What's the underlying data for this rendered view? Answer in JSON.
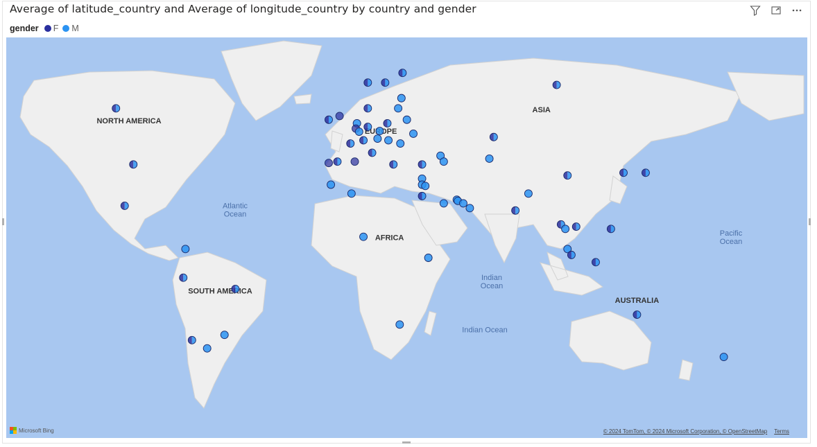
{
  "visual": {
    "title": "Average of latitude_country and Average of longitude_country by country and gender"
  },
  "legend": {
    "title": "gender",
    "items": [
      {
        "label": "F",
        "color": "#2a2f9e"
      },
      {
        "label": "M",
        "color": "#2b93f2"
      }
    ]
  },
  "icons": [
    "filter-icon",
    "focus-mode-icon",
    "more-options-icon"
  ],
  "map": {
    "continent_labels": [
      "NORTH AMERICA",
      "SOUTH AMERICA",
      "EUROPE",
      "AFRICA",
      "ASIA",
      "AUSTRALIA"
    ],
    "ocean_labels": [
      "Atlantic Ocean",
      "Indian Ocean",
      "Indian Ocean",
      "Pacific Ocean"
    ],
    "bing_label": "Microsoft Bing",
    "attribution": "© 2024 TomTom, © 2024 Microsoft Corporation, © OpenStreetMap",
    "terms_label": "Terms"
  },
  "chart_data": {
    "type": "scatter",
    "title": "Average of latitude_country and Average of longitude_country by country and gender",
    "xlabel": "Average of longitude_country",
    "ylabel": "Average of latitude_country",
    "legend_position": "top-left",
    "colors": {
      "F": "#2a2f9e",
      "M": "#2b93f2"
    },
    "points": [
      {
        "lon": -106,
        "lat": 56,
        "genders": [
          "F",
          "M"
        ]
      },
      {
        "lon": -98,
        "lat": 39,
        "genders": [
          "F",
          "M"
        ]
      },
      {
        "lon": -102,
        "lat": 23,
        "genders": [
          "F",
          "M"
        ]
      },
      {
        "lon": -74,
        "lat": 4,
        "genders": [
          "M"
        ]
      },
      {
        "lon": -75,
        "lat": -9,
        "genders": [
          "F",
          "M"
        ]
      },
      {
        "lon": -51,
        "lat": -14,
        "genders": [
          "F",
          "M"
        ]
      },
      {
        "lon": -71,
        "lat": -35,
        "genders": [
          "F",
          "M"
        ]
      },
      {
        "lon": -64,
        "lat": -38,
        "genders": [
          "M"
        ]
      },
      {
        "lon": -56,
        "lat": -33,
        "genders": [
          "M"
        ]
      },
      {
        "lon": -8,
        "lat": 53,
        "genders": [
          "F",
          "M"
        ]
      },
      {
        "lon": -3,
        "lat": 54,
        "genders": [
          "F"
        ]
      },
      {
        "lon": 5,
        "lat": 52,
        "genders": [
          "M"
        ]
      },
      {
        "lon": 4.5,
        "lat": 50.5,
        "genders": [
          "F"
        ]
      },
      {
        "lon": 6,
        "lat": 49.6,
        "genders": [
          "M"
        ]
      },
      {
        "lon": 10,
        "lat": 56,
        "genders": [
          "F",
          "M"
        ]
      },
      {
        "lon": 10,
        "lat": 51,
        "genders": [
          "F",
          "M"
        ]
      },
      {
        "lon": 2,
        "lat": 46,
        "genders": [
          "F",
          "M"
        ]
      },
      {
        "lon": 8,
        "lat": 47,
        "genders": [
          "F",
          "M"
        ]
      },
      {
        "lon": 14.5,
        "lat": 47.5,
        "genders": [
          "M"
        ]
      },
      {
        "lon": 15.5,
        "lat": 49.8,
        "genders": [
          "M"
        ]
      },
      {
        "lon": 19,
        "lat": 52,
        "genders": [
          "F",
          "M"
        ]
      },
      {
        "lon": 19.5,
        "lat": 47,
        "genders": [
          "M"
        ]
      },
      {
        "lon": 25,
        "lat": 46,
        "genders": [
          "M"
        ]
      },
      {
        "lon": 31,
        "lat": 49,
        "genders": [
          "M"
        ]
      },
      {
        "lon": 28,
        "lat": 53,
        "genders": [
          "M"
        ]
      },
      {
        "lon": 24,
        "lat": 56,
        "genders": [
          "M"
        ]
      },
      {
        "lon": 25.5,
        "lat": 58.5,
        "genders": [
          "M"
        ]
      },
      {
        "lon": 10,
        "lat": 62,
        "genders": [
          "F",
          "M"
        ]
      },
      {
        "lon": 18,
        "lat": 62,
        "genders": [
          "F",
          "M"
        ]
      },
      {
        "lon": 26,
        "lat": 64,
        "genders": [
          "F",
          "M"
        ]
      },
      {
        "lon": 12,
        "lat": 43,
        "genders": [
          "F",
          "M"
        ]
      },
      {
        "lon": 4,
        "lat": 40,
        "genders": [
          "F"
        ]
      },
      {
        "lon": -8,
        "lat": 39.5,
        "genders": [
          "F"
        ]
      },
      {
        "lon": -4,
        "lat": 40,
        "genders": [
          "F",
          "M"
        ]
      },
      {
        "lon": 21.8,
        "lat": 39,
        "genders": [
          "F",
          "M"
        ]
      },
      {
        "lon": 35,
        "lat": 39,
        "genders": [
          "F",
          "M"
        ]
      },
      {
        "lon": 35,
        "lat": 33.8,
        "genders": [
          "M"
        ]
      },
      {
        "lon": 35,
        "lat": 31.5,
        "genders": [
          "M"
        ]
      },
      {
        "lon": 36.5,
        "lat": 31,
        "genders": [
          "M"
        ]
      },
      {
        "lon": 35,
        "lat": 27,
        "genders": [
          "F",
          "M"
        ]
      },
      {
        "lon": 45,
        "lat": 24,
        "genders": [
          "M"
        ]
      },
      {
        "lon": 43.5,
        "lat": 42,
        "genders": [
          "M"
        ]
      },
      {
        "lon": 45,
        "lat": 40,
        "genders": [
          "M"
        ]
      },
      {
        "lon": 68,
        "lat": 48,
        "genders": [
          "F",
          "M"
        ]
      },
      {
        "lon": 66,
        "lat": 41,
        "genders": [
          "M"
        ]
      },
      {
        "lon": -7,
        "lat": 31.5,
        "genders": [
          "M"
        ]
      },
      {
        "lon": 2.5,
        "lat": 28,
        "genders": [
          "M"
        ]
      },
      {
        "lon": 8,
        "lat": 9.5,
        "genders": [
          "M"
        ]
      },
      {
        "lon": 37.9,
        "lat": 0,
        "genders": [
          "M"
        ]
      },
      {
        "lon": 24.7,
        "lat": -29,
        "genders": [
          "M"
        ]
      },
      {
        "lon": 51,
        "lat": 25.5,
        "genders": [
          "M"
        ]
      },
      {
        "lon": 51.5,
        "lat": 25,
        "genders": [
          "M"
        ]
      },
      {
        "lon": 54,
        "lat": 24,
        "genders": [
          "M"
        ]
      },
      {
        "lon": 57,
        "lat": 22,
        "genders": [
          "M"
        ]
      },
      {
        "lon": 84,
        "lat": 28,
        "genders": [
          "M"
        ]
      },
      {
        "lon": 78,
        "lat": 21,
        "genders": [
          "F",
          "M"
        ]
      },
      {
        "lon": 97,
        "lat": 61.5,
        "genders": [
          "F",
          "M"
        ]
      },
      {
        "lon": 102,
        "lat": 35,
        "genders": [
          "F",
          "M"
        ]
      },
      {
        "lon": 127.8,
        "lat": 36,
        "genders": [
          "F",
          "M"
        ]
      },
      {
        "lon": 138,
        "lat": 36,
        "genders": [
          "F",
          "M"
        ]
      },
      {
        "lon": 99,
        "lat": 15,
        "genders": [
          "F",
          "M"
        ]
      },
      {
        "lon": 101,
        "lat": 13,
        "genders": [
          "M"
        ]
      },
      {
        "lon": 106,
        "lat": 14,
        "genders": [
          "F",
          "M"
        ]
      },
      {
        "lon": 122,
        "lat": 13,
        "genders": [
          "F",
          "M"
        ]
      },
      {
        "lon": 102,
        "lat": 4,
        "genders": [
          "M"
        ]
      },
      {
        "lon": 103.8,
        "lat": 1.3,
        "genders": [
          "F",
          "M"
        ]
      },
      {
        "lon": 115,
        "lat": -2,
        "genders": [
          "F",
          "M"
        ]
      },
      {
        "lon": 134,
        "lat": -25,
        "genders": [
          "F",
          "M"
        ]
      },
      {
        "lon": 174,
        "lat": -41,
        "genders": [
          "M"
        ]
      }
    ]
  }
}
